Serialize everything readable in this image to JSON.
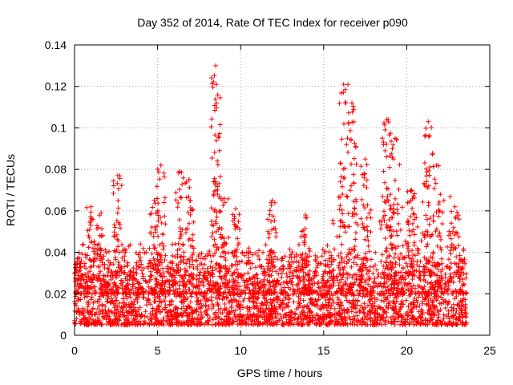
{
  "chart_data": {
    "type": "scatter",
    "title": "Day 352 of 2014, Rate Of TEC Index for receiver p090",
    "xlabel": "GPS time / hours",
    "ylabel": "ROTI / TECUs",
    "xlim": [
      0,
      25
    ],
    "ylim": [
      0,
      0.14
    ],
    "x_ticks": [
      0,
      5,
      10,
      15,
      20,
      25
    ],
    "x_tick_labels": [
      "0",
      "5",
      "10",
      "15",
      "20",
      "25"
    ],
    "y_ticks": [
      0,
      0.02,
      0.04,
      0.06,
      0.08,
      0.1,
      0.12,
      0.14
    ],
    "y_tick_labels": [
      "0",
      "0.02",
      "0.04",
      "0.06",
      "0.08",
      "0.1",
      "0.12",
      "0.14"
    ],
    "grid": true,
    "marker": "plus",
    "color": "#ff0000",
    "x_data_extent": [
      0,
      23.6
    ],
    "baseline_band": [
      0.005,
      0.03
    ],
    "notable_peaks": [
      {
        "x": 0.2,
        "y": 0.037
      },
      {
        "x": 1.0,
        "y": 0.062
      },
      {
        "x": 1.6,
        "y": 0.059
      },
      {
        "x": 2.6,
        "y": 0.077
      },
      {
        "x": 4.8,
        "y": 0.065
      },
      {
        "x": 5.2,
        "y": 0.082
      },
      {
        "x": 6.3,
        "y": 0.079
      },
      {
        "x": 6.9,
        "y": 0.075
      },
      {
        "x": 8.5,
        "y": 0.13
      },
      {
        "x": 8.6,
        "y": 0.084
      },
      {
        "x": 9.0,
        "y": 0.066
      },
      {
        "x": 9.7,
        "y": 0.061
      },
      {
        "x": 11.9,
        "y": 0.065
      },
      {
        "x": 13.9,
        "y": 0.058
      },
      {
        "x": 16.2,
        "y": 0.121
      },
      {
        "x": 16.7,
        "y": 0.112
      },
      {
        "x": 17.5,
        "y": 0.085
      },
      {
        "x": 18.8,
        "y": 0.104
      },
      {
        "x": 19.3,
        "y": 0.095
      },
      {
        "x": 20.3,
        "y": 0.07
      },
      {
        "x": 21.3,
        "y": 0.103
      },
      {
        "x": 21.8,
        "y": 0.082
      },
      {
        "x": 22.9,
        "y": 0.062
      }
    ]
  }
}
